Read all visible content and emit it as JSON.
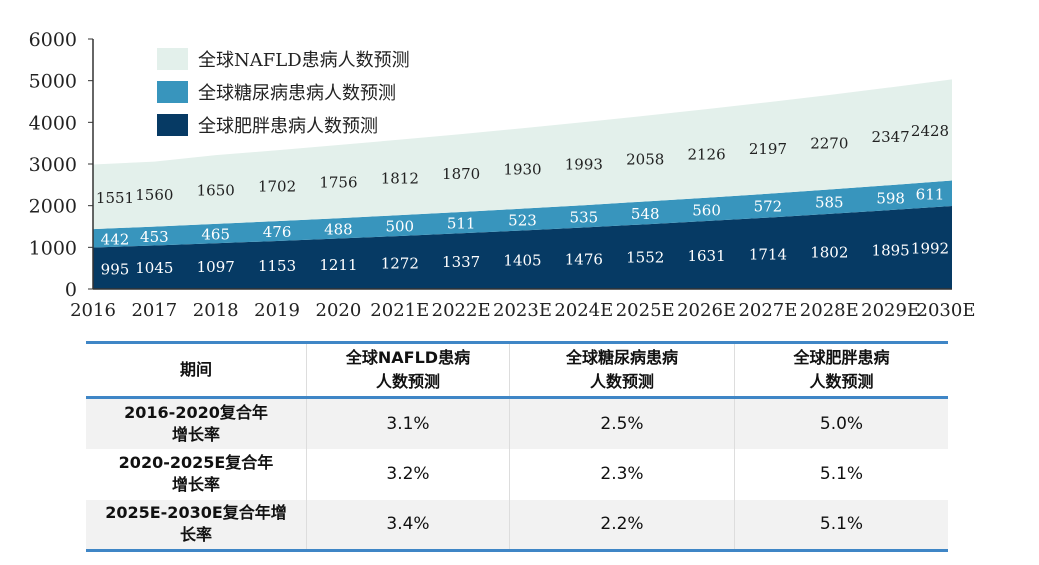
{
  "chart_data": {
    "type": "area",
    "stacked": true,
    "categories": [
      "2016",
      "2017",
      "2018",
      "2019",
      "2020",
      "2021E",
      "2022E",
      "2023E",
      "2024E",
      "2025E",
      "2026E",
      "2027E",
      "2028E",
      "2029E",
      "2030E"
    ],
    "ylim": [
      0,
      6000
    ],
    "yticks": [
      "0",
      "1000",
      "2000",
      "3000",
      "4000",
      "5000",
      "6000"
    ],
    "legend_position": "top-left",
    "series": [
      {
        "name": "全球肥胖患病人数预测",
        "color": "#063a64",
        "label_color": "#ffffff",
        "values": [
          995,
          1045,
          1097,
          1153,
          1211,
          1272,
          1337,
          1405,
          1476,
          1552,
          1631,
          1714,
          1802,
          1895,
          1992
        ]
      },
      {
        "name": "全球糖尿病患病人数预测",
        "color": "#3895bd",
        "label_color": "#ffffff",
        "values": [
          442,
          453,
          465,
          476,
          488,
          500,
          511,
          523,
          535,
          548,
          560,
          572,
          585,
          598,
          611
        ]
      },
      {
        "name": "全球NAFLD患病人数预测",
        "color": "#e3f0eb",
        "label_color": "#222222",
        "values": [
          1551,
          1560,
          1650,
          1702,
          1756,
          1812,
          1870,
          1930,
          1993,
          2058,
          2126,
          2197,
          2270,
          2347,
          2428
        ]
      }
    ],
    "legend_order": [
      "全球NAFLD患病人数预测",
      "全球糖尿病患病人数预测",
      "全球肥胖患病人数预测"
    ]
  },
  "table": {
    "headers": [
      "期间",
      "全球NAFLD患病人数预测",
      "全球糖尿病患病人数预测",
      "全球肥胖患病人数预测"
    ],
    "header_lines": [
      [
        "期间"
      ],
      [
        "全球NAFLD患病",
        "人数预测"
      ],
      [
        "全球糖尿病患病",
        "人数预测"
      ],
      [
        "全球肥胖患病",
        "人数预测"
      ]
    ],
    "rows": [
      {
        "period_lines": [
          "2016-2020复合年",
          "增长率"
        ],
        "values": [
          "3.1%",
          "2.5%",
          "5.0%"
        ]
      },
      {
        "period_lines": [
          "2020-2025E复合年",
          "增长率"
        ],
        "values": [
          "3.2%",
          "2.3%",
          "5.1%"
        ]
      },
      {
        "period_lines": [
          "2025E-2030E复合年增",
          "长率"
        ],
        "values": [
          "3.4%",
          "2.2%",
          "5.1%"
        ]
      }
    ]
  }
}
